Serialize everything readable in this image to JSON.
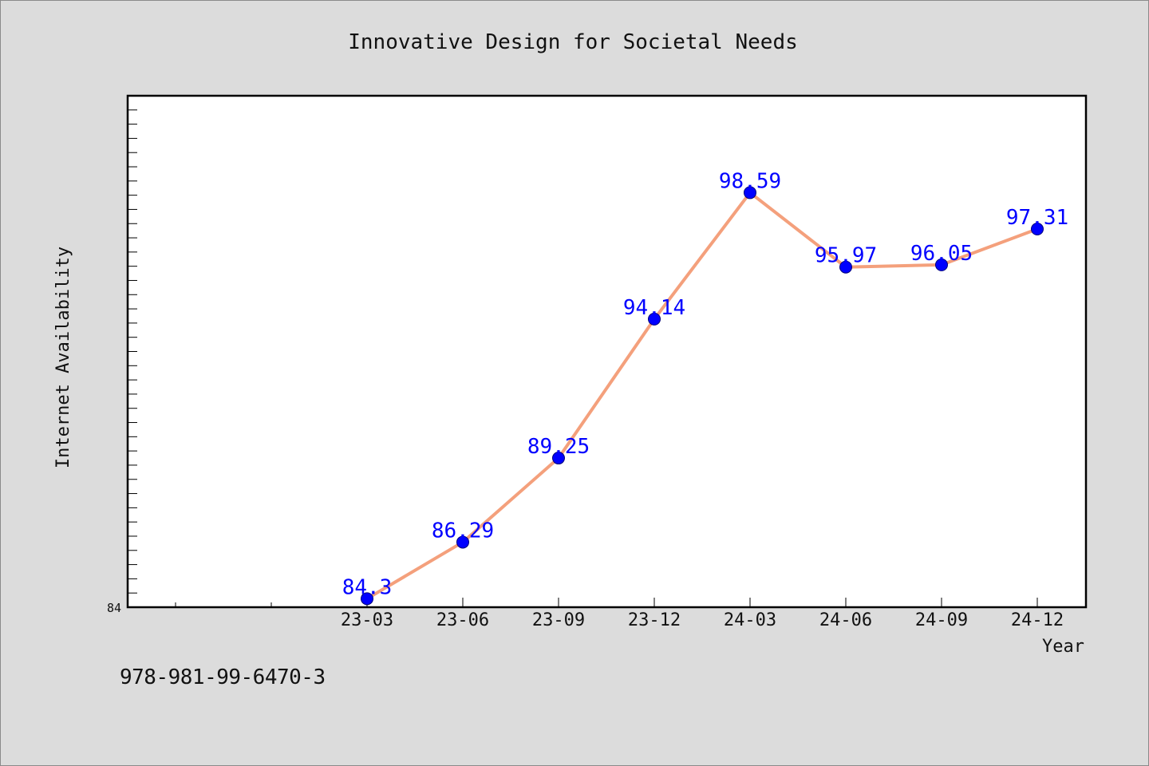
{
  "chart_data": {
    "type": "line",
    "title": "Innovative Design for Societal Needs",
    "xlabel": "Year",
    "ylabel": "Internet Availability",
    "categories": [
      "23-03",
      "23-06",
      "23-09",
      "23-12",
      "24-03",
      "24-06",
      "24-09",
      "24-12"
    ],
    "series": [
      {
        "values": [
          84.3,
          86.29,
          89.25,
          94.14,
          98.59,
          95.97,
          96.05,
          97.31
        ],
        "labels": [
          "84.3",
          "86.29",
          "89.25",
          "94.14",
          "98.59",
          "95.97",
          "96.05",
          "97.31"
        ]
      }
    ],
    "ylim": [
      84,
      102
    ],
    "y_tick_labels": [
      "84"
    ],
    "grid": false,
    "legend": "none",
    "colors": {
      "line": "#f4a07c",
      "marker": "#0000ff",
      "data_label": "#0000ff",
      "plot_bg": "#ffffff",
      "page_bg": "#dcdcdc"
    }
  },
  "footer": {
    "isbn": "978-981-99-6470-3"
  }
}
